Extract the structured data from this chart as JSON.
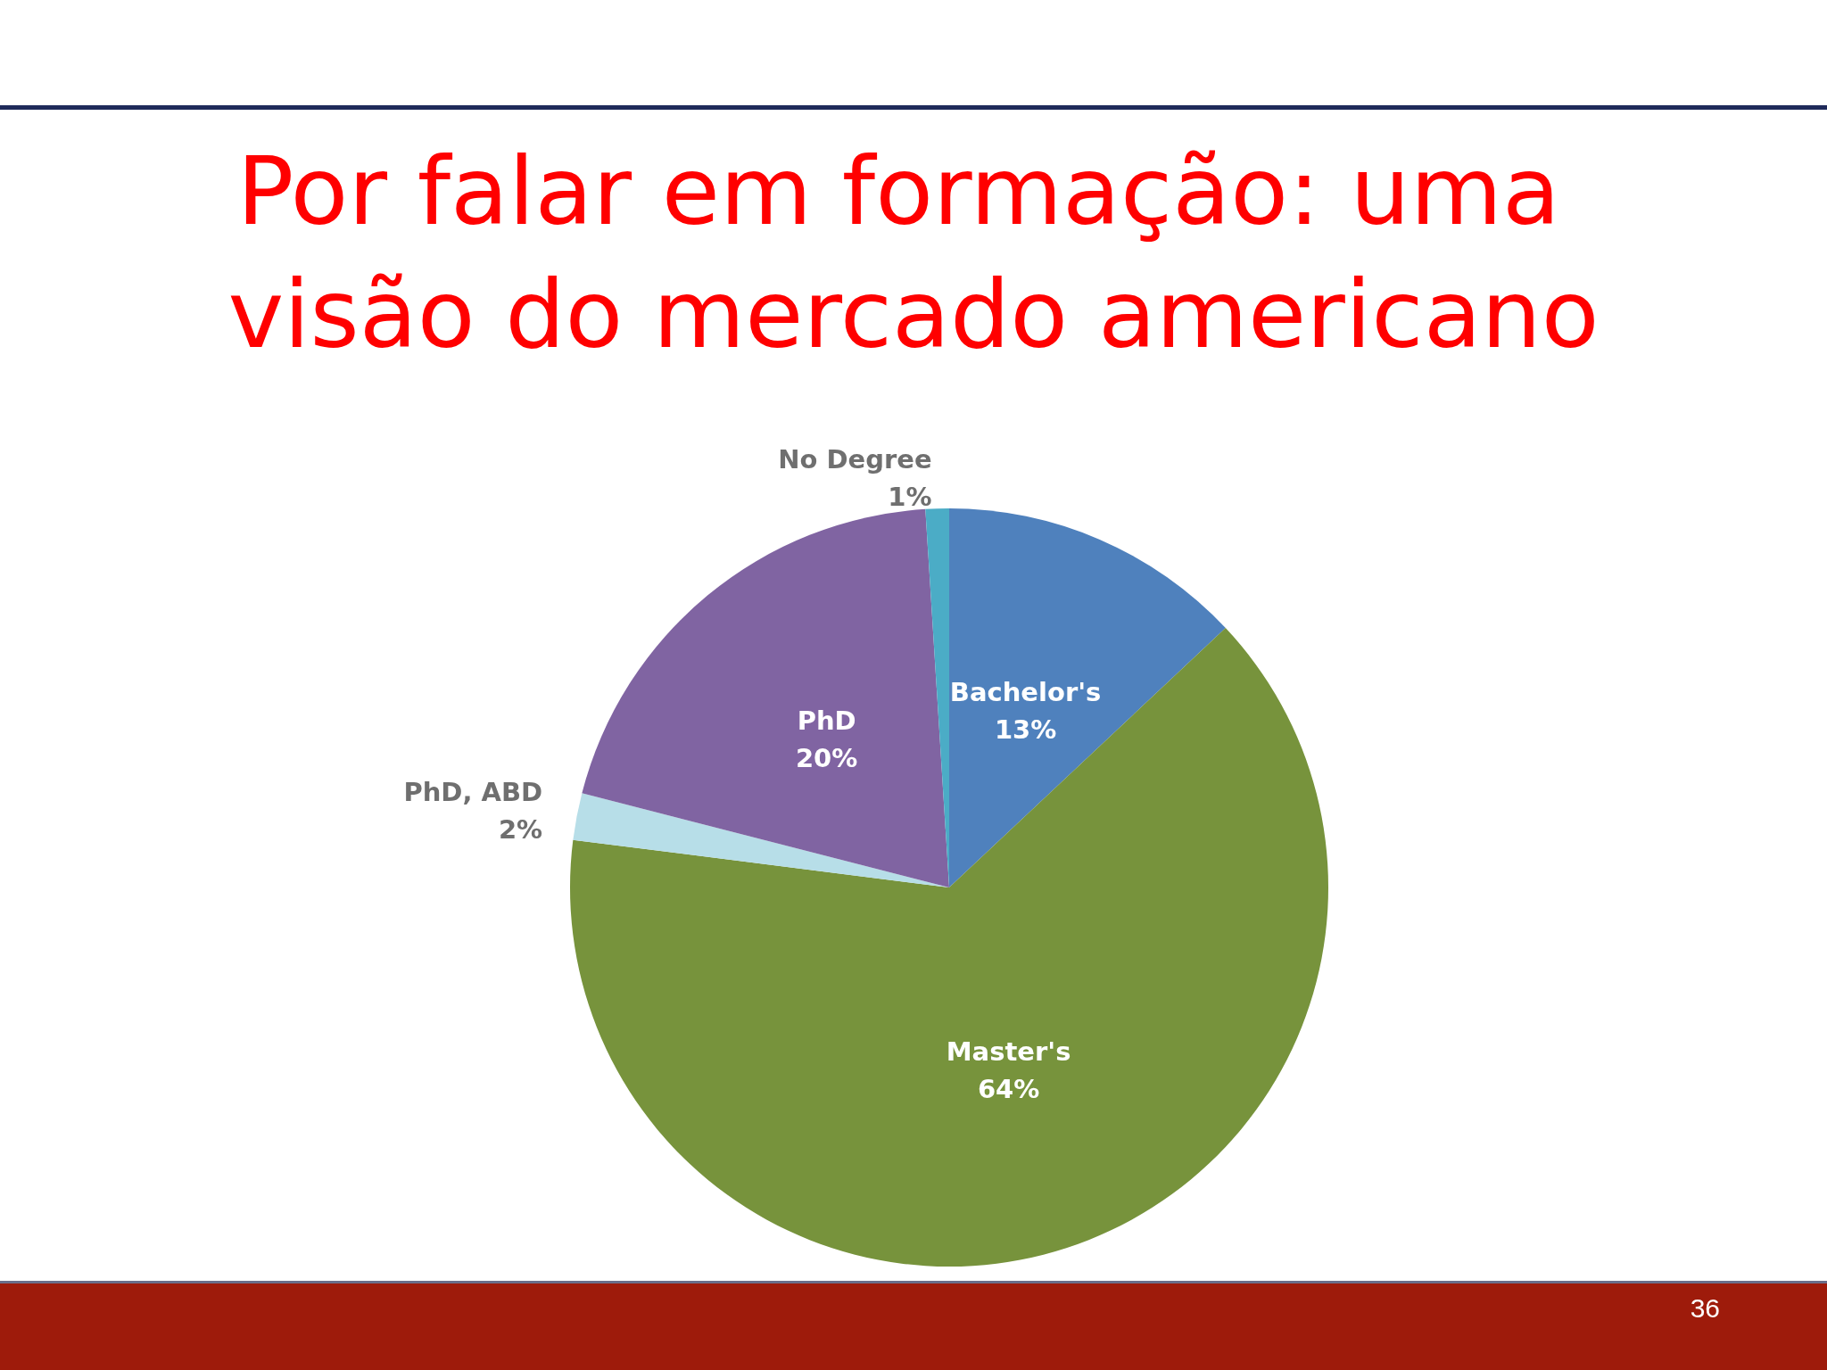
{
  "chart_data": {
    "type": "pie",
    "title": "Por falar em formação: uma visão do mercado americano",
    "categories": [
      "Bachelor's",
      "Master's",
      "PhD, ABD",
      "PhD",
      "No Degree"
    ],
    "values": [
      13,
      64,
      2,
      20,
      1
    ],
    "value_labels": [
      "13%",
      "64%",
      "2%",
      "20%",
      "1%"
    ],
    "colors": [
      "#4f81bd",
      "#77933c",
      "#b7dee8",
      "#8064a2",
      "#4bacc6"
    ],
    "annotations": [
      "36"
    ]
  }
}
